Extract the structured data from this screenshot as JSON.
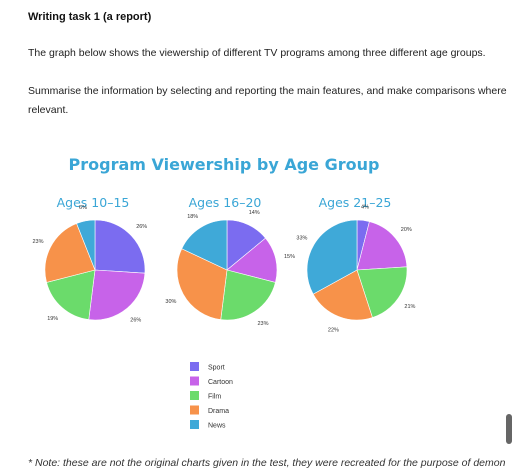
{
  "page": {
    "heading": "Writing task 1 (a report)",
    "prompt_1": "The graph below shows the viewership of different TV programs among three different age groups.",
    "prompt_2a": "Summarise the information by selecting and reporting the main features, and make comparisons where",
    "prompt_2b": "relevant.",
    "footnote": "* Note: these are not the original charts given in the test, they were recreated for the purpose of demon"
  },
  "chart_data": {
    "type": "pie",
    "title": "Program Viewership by Age Group",
    "legend_position": "bottom-center",
    "categories": [
      "Sport",
      "Cartoon",
      "Film",
      "Drama",
      "News"
    ],
    "colors": [
      "#7b6cf0",
      "#c763e9",
      "#6bdb6b",
      "#f7924a",
      "#3fa9d8"
    ],
    "title_color": "#3aa6d6",
    "charts": [
      {
        "name": "Ages 10–15",
        "values": [
          26,
          26,
          19,
          23,
          6
        ]
      },
      {
        "name": "Ages 16–20",
        "values": [
          14,
          15,
          23,
          30,
          18
        ]
      },
      {
        "name": "Ages 21–25",
        "values": [
          4,
          20,
          21,
          22,
          33
        ]
      }
    ]
  }
}
